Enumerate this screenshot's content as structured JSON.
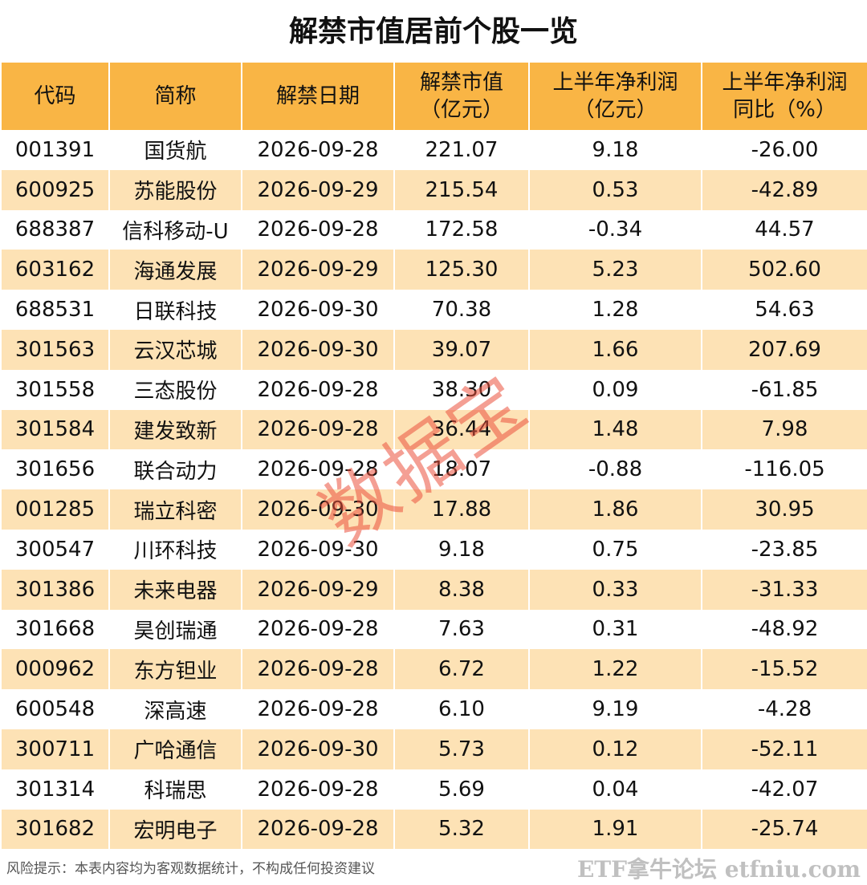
{
  "header": {
    "title": "解禁市值居前个股一览"
  },
  "table": {
    "columns": [
      "代码",
      "简称",
      "解禁日期",
      "解禁市值\n（亿元）",
      "上半年净利润\n（亿元）",
      "上半年净利润\n同比（%）"
    ],
    "rows": [
      [
        "001391",
        "国货航",
        "2026-09-28",
        "221.07",
        "9.18",
        "-26.00"
      ],
      [
        "600925",
        "苏能股份",
        "2026-09-29",
        "215.54",
        "0.53",
        "-42.89"
      ],
      [
        "688387",
        "信科移动-U",
        "2026-09-28",
        "172.58",
        "-0.34",
        "44.57"
      ],
      [
        "603162",
        "海通发展",
        "2026-09-29",
        "125.30",
        "5.23",
        "502.60"
      ],
      [
        "688531",
        "日联科技",
        "2026-09-30",
        "70.38",
        "1.28",
        "54.63"
      ],
      [
        "301563",
        "云汉芯城",
        "2026-09-30",
        "39.07",
        "1.66",
        "207.69"
      ],
      [
        "301558",
        "三态股份",
        "2026-09-28",
        "38.30",
        "0.09",
        "-61.85"
      ],
      [
        "301584",
        "建发致新",
        "2026-09-28",
        "36.44",
        "1.48",
        "7.98"
      ],
      [
        "301656",
        "联合动力",
        "2026-09-28",
        "18.07",
        "-0.88",
        "-116.05"
      ],
      [
        "001285",
        "瑞立科密",
        "2026-09-30",
        "17.88",
        "1.86",
        "30.95"
      ],
      [
        "300547",
        "川环科技",
        "2026-09-30",
        "9.18",
        "0.75",
        "-23.85"
      ],
      [
        "301386",
        "未来电器",
        "2026-09-29",
        "8.38",
        "0.33",
        "-31.33"
      ],
      [
        "301668",
        "昊创瑞通",
        "2026-09-28",
        "7.63",
        "0.31",
        "-48.92"
      ],
      [
        "000962",
        "东方钽业",
        "2026-09-28",
        "6.72",
        "1.22",
        "-15.52"
      ],
      [
        "600548",
        "深高速",
        "2026-09-28",
        "6.10",
        "9.19",
        "-4.28"
      ],
      [
        "300711",
        "广哈通信",
        "2026-09-30",
        "5.73",
        "0.12",
        "-52.11"
      ],
      [
        "301314",
        "科瑞思",
        "2026-09-28",
        "5.69",
        "0.04",
        "-42.07"
      ],
      [
        "301682",
        "宏明电子",
        "2026-09-28",
        "5.32",
        "1.91",
        "-25.74"
      ]
    ]
  },
  "watermark": "数据宝",
  "footer": {
    "note": "风险提示：本表内容均为客观数据统计，不构成任何投资建议",
    "site": "ETF拿牛论坛 etfniu.com"
  }
}
